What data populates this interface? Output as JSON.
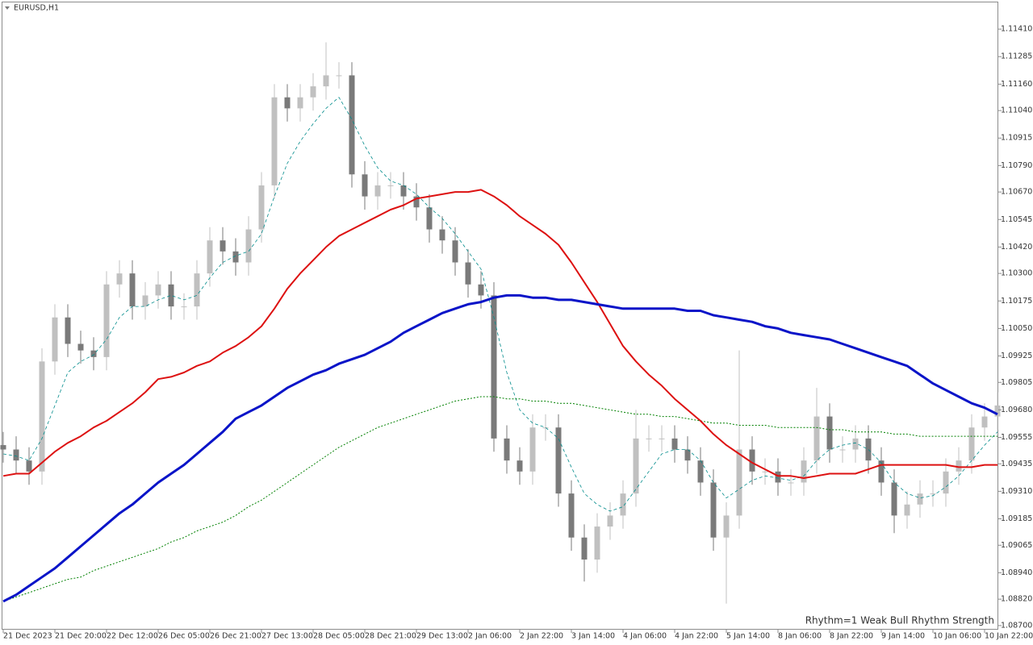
{
  "chart_data": {
    "type": "candlestick",
    "title": "EURUSD,H1",
    "annotation": "Rhythm=1 Weak Bull Rhythm Strength",
    "annotation_color": "#90ee90",
    "up_color": "#c0c0c0",
    "down_color": "#7a7a7a",
    "categories": [
      "21 Dec 2023",
      null,
      null,
      null,
      "21 Dec 20:00",
      null,
      null,
      null,
      "22 Dec 12:00",
      null,
      null,
      null,
      "26 Dec 05:00",
      null,
      null,
      null,
      "26 Dec 21:00",
      null,
      null,
      null,
      "27 Dec 13:00",
      null,
      null,
      null,
      "28 Dec 05:00",
      null,
      null,
      null,
      "28 Dec 21:00",
      null,
      null,
      null,
      "29 Dec 13:00",
      null,
      null,
      null,
      "2 Jan 06:00",
      null,
      null,
      null,
      "2 Jan 22:00",
      null,
      null,
      null,
      "3 Jan 14:00",
      null,
      null,
      null,
      "4 Jan 06:00",
      null,
      null,
      null,
      "4 Jan 22:00",
      null,
      null,
      null,
      "5 Jan 14:00",
      null,
      null,
      null,
      "8 Jan 06:00",
      null,
      null,
      null,
      "8 Jan 22:00",
      null,
      null,
      null,
      "9 Jan 14:00",
      null,
      null,
      null,
      "10 Jan 06:00",
      null,
      null,
      null,
      "10 Jan 22:00",
      null
    ],
    "open": [
      1.0952,
      1.095,
      1.0945,
      1.094,
      1.099,
      1.101,
      1.0998,
      1.0995,
      1.0992,
      1.1025,
      1.103,
      1.1015,
      1.102,
      1.1025,
      1.1015,
      1.1015,
      1.103,
      1.1045,
      1.104,
      1.1035,
      1.105,
      1.107,
      1.111,
      1.1105,
      1.111,
      1.1115,
      1.112,
      1.112,
      1.1075,
      1.1065,
      1.107,
      1.107,
      1.1065,
      1.106,
      1.105,
      1.1045,
      1.1035,
      1.1025,
      1.102,
      1.0955,
      1.0945,
      1.094,
      1.096,
      1.096,
      1.093,
      1.091,
      1.09,
      1.0915,
      1.092,
      1.093,
      1.0955,
      1.0955,
      1.0955,
      1.095,
      1.0945,
      1.0935,
      1.091,
      1.092,
      1.095,
      1.094,
      1.094,
      1.0935,
      1.0935,
      1.0945,
      1.0965,
      1.095,
      1.095,
      1.0955,
      1.0945,
      1.0935,
      1.092,
      1.0925,
      1.093,
      1.093,
      1.094,
      1.0945,
      1.096,
      1.0965
    ],
    "high": [
      1.0958,
      1.0956,
      1.0951,
      1.0996,
      1.1016,
      1.1016,
      1.1004,
      1.1001,
      1.1031,
      1.1036,
      1.1036,
      1.1026,
      1.1031,
      1.1031,
      1.1021,
      1.1036,
      1.1051,
      1.1051,
      1.1046,
      1.1056,
      1.1076,
      1.1116,
      1.1116,
      1.1116,
      1.1121,
      1.1135,
      1.1126,
      1.1126,
      1.1081,
      1.1076,
      1.1076,
      1.1076,
      1.1071,
      1.1066,
      1.1056,
      1.1051,
      1.1041,
      1.1031,
      1.1026,
      1.0961,
      1.0951,
      1.0966,
      1.0966,
      1.0966,
      1.0936,
      1.0916,
      1.0921,
      1.0926,
      1.0936,
      1.0968,
      1.0961,
      1.0961,
      1.0961,
      1.0956,
      1.0951,
      1.0941,
      1.0926,
      1.0995,
      1.0956,
      1.0946,
      1.0946,
      1.0941,
      1.0951,
      1.0978,
      1.0971,
      1.0956,
      1.0961,
      1.0961,
      1.0951,
      1.0941,
      1.0931,
      1.0936,
      1.0936,
      1.0946,
      1.0951,
      1.0966,
      1.0971,
      1.0976
    ],
    "low": [
      1.0944,
      1.0939,
      1.0934,
      1.0934,
      1.0984,
      1.0992,
      1.0989,
      1.0986,
      1.0986,
      1.1019,
      1.1009,
      1.1009,
      1.1014,
      1.1009,
      1.1009,
      1.1009,
      1.1024,
      1.1034,
      1.1029,
      1.1029,
      1.1044,
      1.1064,
      1.1099,
      1.1099,
      1.1104,
      1.1109,
      1.1114,
      1.1069,
      1.1059,
      1.1059,
      1.1064,
      1.1059,
      1.1054,
      1.1044,
      1.1039,
      1.1029,
      1.1019,
      1.1014,
      1.0949,
      1.0939,
      1.0934,
      1.0934,
      1.0954,
      1.0924,
      1.0904,
      1.089,
      1.0894,
      1.0909,
      1.0914,
      1.0924,
      1.0949,
      1.0949,
      1.0944,
      1.0939,
      1.0929,
      1.0904,
      1.088,
      1.0914,
      1.0934,
      1.0934,
      1.0929,
      1.0929,
      1.0929,
      1.0939,
      1.0944,
      1.0944,
      1.0944,
      1.0939,
      1.0929,
      1.0912,
      1.0914,
      1.0919,
      1.0924,
      1.0924,
      1.0934,
      1.0939,
      1.0954,
      1.0959
    ],
    "close": [
      1.095,
      1.0945,
      1.094,
      1.099,
      1.101,
      1.0998,
      1.0995,
      1.0992,
      1.1025,
      1.103,
      1.1015,
      1.102,
      1.1025,
      1.1015,
      1.1015,
      1.103,
      1.1045,
      1.104,
      1.1035,
      1.105,
      1.107,
      1.111,
      1.1105,
      1.111,
      1.1115,
      1.112,
      1.112,
      1.1075,
      1.1065,
      1.107,
      1.107,
      1.1065,
      1.106,
      1.105,
      1.1045,
      1.1035,
      1.1025,
      1.102,
      1.0955,
      1.0945,
      1.094,
      1.096,
      1.096,
      1.093,
      1.091,
      1.09,
      1.0915,
      1.092,
      1.093,
      1.0955,
      1.0955,
      1.0955,
      1.095,
      1.0945,
      1.0935,
      1.091,
      1.092,
      1.095,
      1.094,
      1.094,
      1.0935,
      1.0935,
      1.0945,
      1.0965,
      1.095,
      1.095,
      1.0955,
      1.0945,
      1.0935,
      1.092,
      1.0925,
      1.093,
      1.093,
      1.094,
      1.0945,
      1.096,
      1.0965,
      1.097
    ],
    "series": [
      {
        "color": "#008b8b",
        "style": "dashed",
        "width": 0.8,
        "values": [
          1.0948,
          1.0947,
          1.0945,
          1.0955,
          1.097,
          1.0985,
          1.099,
          1.0993,
          1.1,
          1.101,
          1.1015,
          1.1015,
          1.1018,
          1.102,
          1.1018,
          1.102,
          1.1028,
          1.1035,
          1.1038,
          1.104,
          1.1048,
          1.1065,
          1.108,
          1.109,
          1.1098,
          1.1105,
          1.111,
          1.11,
          1.1088,
          1.1078,
          1.1072,
          1.107,
          1.1066,
          1.106,
          1.1055,
          1.1048,
          1.104,
          1.1032,
          1.101,
          1.0985,
          1.0968,
          1.0962,
          1.096,
          1.0955,
          1.0942,
          1.093,
          1.0925,
          1.0922,
          1.0924,
          1.0932,
          1.094,
          1.0948,
          1.095,
          1.095,
          1.0945,
          1.0935,
          1.0928,
          1.0932,
          1.0936,
          1.0938,
          1.0937,
          1.0936,
          1.0938,
          1.0945,
          1.095,
          1.0952,
          1.0953,
          1.095,
          1.0944,
          1.0935,
          1.093,
          1.0928,
          1.0929,
          1.0933,
          1.0938,
          1.0945,
          1.0952,
          1.0958
        ]
      },
      {
        "color": "#008000",
        "style": "dotted",
        "width": 1,
        "values": [
          1.0881,
          1.0883,
          1.0885,
          1.0887,
          1.0889,
          1.0891,
          1.0892,
          1.0895,
          1.0897,
          1.0899,
          1.0901,
          1.0903,
          1.0905,
          1.0908,
          1.091,
          1.0913,
          1.0915,
          1.0917,
          1.092,
          1.0924,
          1.0927,
          1.0931,
          1.0935,
          1.0939,
          1.0943,
          1.0947,
          1.0951,
          1.0954,
          1.0957,
          1.096,
          1.0962,
          1.0964,
          1.0966,
          1.0968,
          1.097,
          1.0972,
          1.0973,
          1.0974,
          1.0974,
          1.0973,
          1.0973,
          1.0972,
          1.0972,
          1.0971,
          1.0971,
          1.097,
          1.0969,
          1.0968,
          1.0967,
          1.0966,
          1.0966,
          1.0965,
          1.0965,
          1.0964,
          1.0963,
          1.0962,
          1.0962,
          1.0961,
          1.0961,
          1.0961,
          1.096,
          1.096,
          1.096,
          1.096,
          1.0959,
          1.0959,
          1.0958,
          1.0958,
          1.0958,
          1.0957,
          1.0957,
          1.0956,
          1.0956,
          1.0956,
          1.0956,
          1.0956,
          1.0956,
          1.0956
        ]
      },
      {
        "color": "#dd1111",
        "style": "solid",
        "width": 2,
        "values": [
          1.0938,
          1.0939,
          1.0939,
          1.0944,
          1.0949,
          1.0953,
          1.0956,
          1.096,
          1.0963,
          1.0967,
          1.0971,
          1.0976,
          1.0982,
          1.0983,
          1.0985,
          1.0988,
          1.099,
          1.0994,
          1.0997,
          1.1001,
          1.1006,
          1.1014,
          1.1023,
          1.103,
          1.1036,
          1.1042,
          1.1047,
          1.105,
          1.1053,
          1.1056,
          1.1059,
          1.1061,
          1.1064,
          1.1065,
          1.1066,
          1.1067,
          1.1067,
          1.1068,
          1.1065,
          1.1061,
          1.1056,
          1.1052,
          1.1048,
          1.1043,
          1.1035,
          1.1026,
          1.1017,
          1.1007,
          1.0997,
          1.099,
          1.0984,
          1.0979,
          1.0973,
          1.0968,
          1.0963,
          1.0957,
          1.0952,
          1.0948,
          1.0944,
          1.0941,
          1.0938,
          1.0938,
          1.0937,
          1.0938,
          1.0939,
          1.0939,
          1.0939,
          1.0941,
          1.0943,
          1.0943,
          1.0943,
          1.0943,
          1.0943,
          1.0943,
          1.0942,
          1.0942,
          1.0943,
          1.0943
        ]
      },
      {
        "color": "#0a14c8",
        "style": "solid",
        "width": 3,
        "values": [
          1.0881,
          1.0884,
          1.0888,
          1.0892,
          1.0896,
          1.0901,
          1.0906,
          1.0911,
          1.0916,
          1.0921,
          1.0925,
          1.093,
          1.0935,
          1.0939,
          1.0943,
          1.0948,
          1.0953,
          1.0958,
          1.0964,
          1.0967,
          1.097,
          1.0974,
          1.0978,
          1.0981,
          1.0984,
          1.0986,
          1.0989,
          1.0991,
          1.0993,
          1.0996,
          1.0999,
          1.1003,
          1.1006,
          1.1009,
          1.1012,
          1.1014,
          1.1016,
          1.1017,
          1.1019,
          1.102,
          1.102,
          1.1019,
          1.1019,
          1.1018,
          1.1018,
          1.1017,
          1.1016,
          1.1015,
          1.1014,
          1.1014,
          1.1014,
          1.1014,
          1.1014,
          1.1013,
          1.1013,
          1.1011,
          1.101,
          1.1009,
          1.1008,
          1.1006,
          1.1005,
          1.1003,
          1.1002,
          1.1001,
          1.1,
          1.0998,
          1.0996,
          1.0994,
          1.0992,
          1.099,
          1.0988,
          1.0984,
          1.098,
          1.0977,
          1.0974,
          1.0971,
          1.0969,
          1.0966
        ]
      }
    ],
    "ylim": [
      1.08685,
      1.11535
    ],
    "yticks": [
      {
        "value": 1.087,
        "label": "1.08700"
      },
      {
        "value": 1.0882,
        "label": "1.08820"
      },
      {
        "value": 1.0894,
        "label": "1.08940"
      },
      {
        "value": 1.09065,
        "label": "1.09065"
      },
      {
        "value": 1.09185,
        "label": "1.09185"
      },
      {
        "value": 1.0931,
        "label": "1.09310"
      },
      {
        "value": 1.09435,
        "label": "1.09435"
      },
      {
        "value": 1.09555,
        "label": "1.09555"
      },
      {
        "value": 1.0968,
        "label": "1.09680"
      },
      {
        "value": 1.09805,
        "label": "1.09805"
      },
      {
        "value": 1.09925,
        "label": "1.09925"
      },
      {
        "value": 1.1005,
        "label": "1.10050"
      },
      {
        "value": 1.10175,
        "label": "1.10175"
      },
      {
        "value": 1.103,
        "label": "1.10300"
      },
      {
        "value": 1.1042,
        "label": "1.10420"
      },
      {
        "value": 1.10545,
        "label": "1.10545"
      },
      {
        "value": 1.1067,
        "label": "1.10670"
      },
      {
        "value": 1.1079,
        "label": "1.10790"
      },
      {
        "value": 1.10915,
        "label": "1.10915"
      },
      {
        "value": 1.1104,
        "label": "1.11040"
      },
      {
        "value": 1.1116,
        "label": "1.11160"
      },
      {
        "value": 1.11285,
        "label": "1.11285"
      },
      {
        "value": 1.1141,
        "label": "1.11410"
      }
    ]
  }
}
